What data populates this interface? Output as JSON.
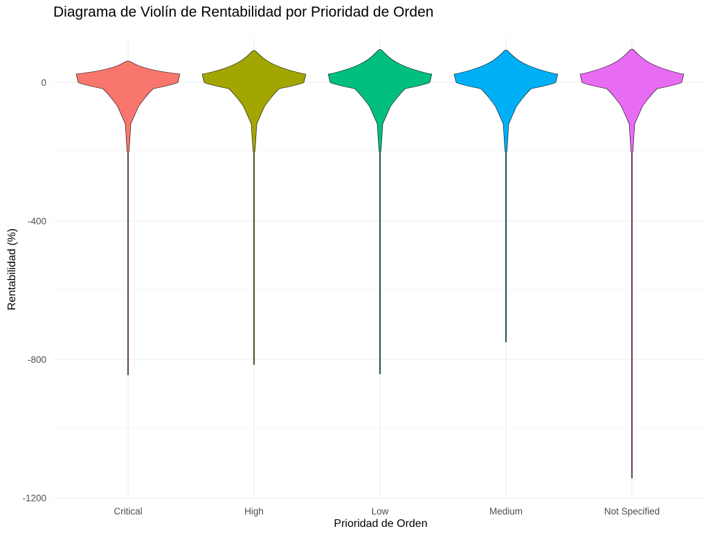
{
  "chart_data": {
    "type": "violin",
    "title": "Diagrama de Violín de Rentabilidad por Prioridad de Orden",
    "xlabel": "Prioridad de Orden",
    "ylabel": "Rentabilidad (%)",
    "categories": [
      "Critical",
      "High",
      "Low",
      "Medium",
      "Not Specified"
    ],
    "colors": [
      "#F8766D",
      "#A3A500",
      "#00BF7D",
      "#00B0F6",
      "#E76BF3"
    ],
    "ylim": [
      -1200,
      130
    ],
    "yticks": [
      0,
      -400,
      -800,
      -1200
    ],
    "grid": true,
    "legend": "none",
    "series": [
      {
        "category": "Critical",
        "max": 62,
        "min": -845
      },
      {
        "category": "High",
        "max": 92,
        "min": -815
      },
      {
        "category": "Low",
        "max": 95,
        "min": -842
      },
      {
        "category": "Medium",
        "max": 93,
        "min": -750
      },
      {
        "category": "Not Specified",
        "max": 96,
        "min": -1143
      }
    ]
  }
}
